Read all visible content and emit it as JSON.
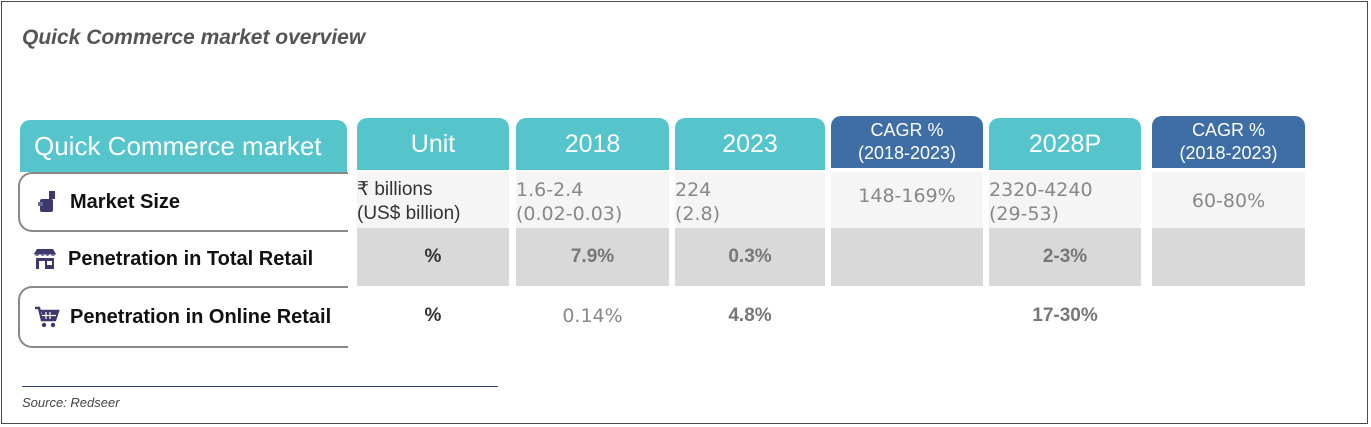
{
  "title": "Quick Commerce market overview",
  "header": {
    "row_label": "Quick Commerce market",
    "columns": [
      "Unit",
      "2018",
      "2023",
      "CAGR %\n(2018-2023)",
      "2028P",
      "CAGR %\n(2018-2023)"
    ],
    "cagr1_line1": "CAGR %",
    "cagr1_line2": "(2018-2023)",
    "cagr2_line1": "CAGR %",
    "cagr2_line2": "(2018-2023)"
  },
  "rows": [
    {
      "label": "Market Size",
      "icon": "market-size-icon",
      "unit_line1": "₹ billions",
      "unit_line2": "(US$ billion)",
      "y2018_line1": "1.6-2.4",
      "y2018_line2": "(0.02-0.03)",
      "y2023_line1": "224",
      "y2023_line2": "(2.8)",
      "cagr1": "148-169%",
      "y2028_line1": "2320-4240",
      "y2028_line2": "(29-53)",
      "cagr2": "60-80%"
    },
    {
      "label": "Penetration in Total Retail",
      "icon": "store-icon",
      "unit": "%",
      "y2018": "7.9%",
      "y2023": "0.3%",
      "cagr1": "",
      "y2028": "2-3%",
      "cagr2": ""
    },
    {
      "label": "Penetration in Online Retail",
      "icon": "shopping-cart-icon",
      "unit": "%",
      "y2018": "0.14%",
      "y2023": "4.8%",
      "cagr1": "",
      "y2028": "17-30%",
      "cagr2": ""
    }
  ],
  "source": "Source: Redseer",
  "colors": {
    "teal": "#55c4cb",
    "blue": "#3f6ea6",
    "icon": "#3d3a6b"
  }
}
